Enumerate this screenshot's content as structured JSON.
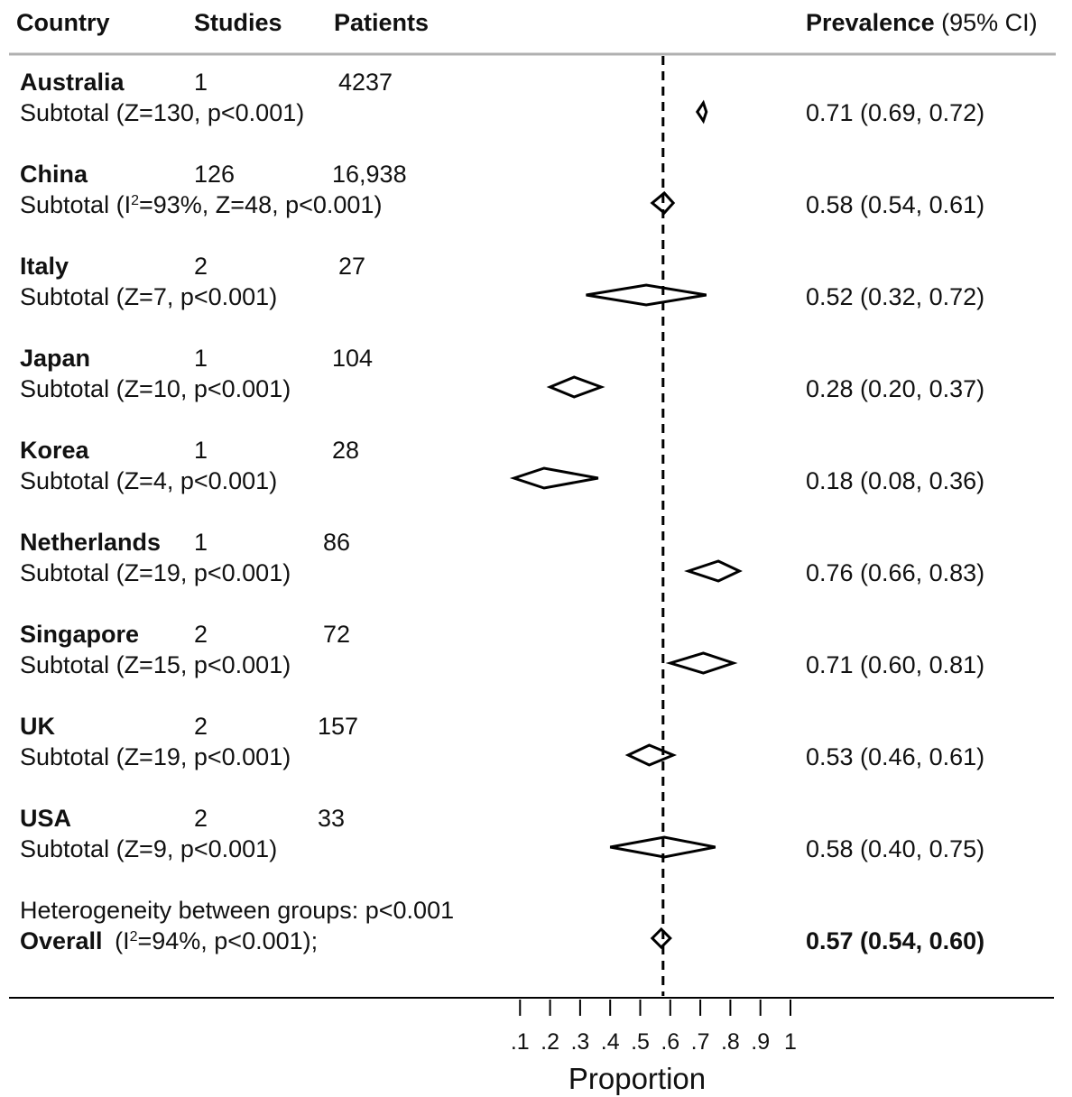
{
  "header": {
    "country": "Country",
    "studies": "Studies",
    "patients": "Patients",
    "prevalence": "Prevalence",
    "ci": "(95% CI)"
  },
  "rows": [
    {
      "country": "Australia",
      "studies": "1",
      "patients": "4237",
      "subtotal": "Subtotal (Z=130, p<0.001)",
      "estimate": "0.71 (0.69, 0.72)"
    },
    {
      "country": "China",
      "studies": "126",
      "patients": "16,938",
      "subtotal_pre": "Subtotal (I",
      "subtotal_sup": "2",
      "subtotal_post": "=93%, Z=48, p<0.001)",
      "estimate": "0.58 (0.54, 0.61)"
    },
    {
      "country": "Italy",
      "studies": "2",
      "patients": "27",
      "subtotal": "Subtotal (Z=7, p<0.001)",
      "estimate": "0.52 (0.32, 0.72)"
    },
    {
      "country": "Japan",
      "studies": "1",
      "patients": "104",
      "subtotal": "Subtotal (Z=10, p<0.001)",
      "estimate": "0.28 (0.20, 0.37)"
    },
    {
      "country": "Korea",
      "studies": "1",
      "patients": "28",
      "subtotal": "Subtotal (Z=4, p<0.001)",
      "estimate": "0.18 (0.08, 0.36)"
    },
    {
      "country": "Netherlands",
      "studies": "1",
      "patients": "86",
      "subtotal": "Subtotal (Z=19, p<0.001)",
      "estimate": "0.76 (0.66, 0.83)"
    },
    {
      "country": "Singapore",
      "studies": "2",
      "patients": "72",
      "subtotal": "Subtotal (Z=15, p<0.001)",
      "estimate": "0.71 (0.60, 0.81)"
    },
    {
      "country": "UK",
      "studies": "2",
      "patients": "157",
      "subtotal": "Subtotal (Z=19, p<0.001)",
      "estimate": "0.53 (0.46, 0.61)"
    },
    {
      "country": "USA",
      "studies": "2",
      "patients": "33",
      "subtotal": "Subtotal (Z=9, p<0.001)",
      "estimate": "0.58 (0.40, 0.75)"
    }
  ],
  "footer": {
    "heterogeneity": "Heterogeneity between groups: p<0.001",
    "overall_label": "Overall",
    "overall_stats_pre": "(I",
    "overall_stats_sup": "2",
    "overall_stats_post": "=94%, p<0.001);",
    "overall_estimate": "0.57 (0.54, 0.60)"
  },
  "chart_data": {
    "type": "forest",
    "xlabel": "Proportion",
    "xlim": [
      0,
      1.05
    ],
    "ticks": [
      0.1,
      0.2,
      0.3,
      0.4,
      0.5,
      0.6,
      0.7,
      0.8,
      0.9,
      1
    ],
    "tick_labels": [
      ".1",
      ".2",
      ".3",
      ".4",
      ".5",
      ".6",
      ".7",
      ".8",
      ".9",
      "1"
    ],
    "reference_line": 0.57,
    "reference_style": "dashed",
    "grid": false,
    "series": [
      {
        "name": "Australia",
        "estimate": 0.71,
        "lower": 0.69,
        "upper": 0.72
      },
      {
        "name": "China",
        "estimate": 0.58,
        "lower": 0.54,
        "upper": 0.61
      },
      {
        "name": "Italy",
        "estimate": 0.52,
        "lower": 0.32,
        "upper": 0.72
      },
      {
        "name": "Japan",
        "estimate": 0.28,
        "lower": 0.2,
        "upper": 0.37
      },
      {
        "name": "Korea",
        "estimate": 0.18,
        "lower": 0.08,
        "upper": 0.36
      },
      {
        "name": "Netherlands",
        "estimate": 0.76,
        "lower": 0.66,
        "upper": 0.83
      },
      {
        "name": "Singapore",
        "estimate": 0.71,
        "lower": 0.6,
        "upper": 0.81
      },
      {
        "name": "UK",
        "estimate": 0.53,
        "lower": 0.46,
        "upper": 0.61
      },
      {
        "name": "USA",
        "estimate": 0.58,
        "lower": 0.4,
        "upper": 0.75
      },
      {
        "name": "Overall",
        "estimate": 0.57,
        "lower": 0.54,
        "upper": 0.6
      }
    ]
  }
}
